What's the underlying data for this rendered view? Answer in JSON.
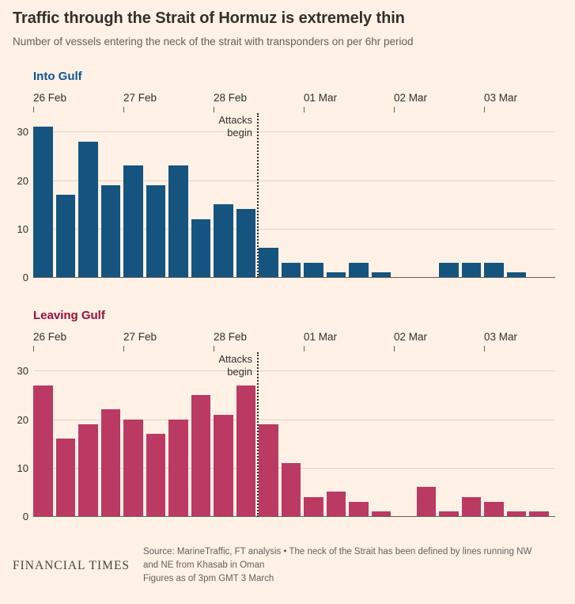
{
  "page": {
    "background_color": "#fff1e5",
    "title": "Traffic through the Strait of Hormuz is extremely thin",
    "subtitle": "Number of vessels entering the neck of the strait with transponders on per 6hr period"
  },
  "footer": {
    "logo": "FINANCIAL TIMES",
    "source_lines": [
      "Source: MarineTraffic, FT analysis • The neck of the Strait has been defined by lines running NW",
      "and NE from Khasab in Oman",
      "Figures as of 3pm GMT 3 March"
    ]
  },
  "chart_data": [
    {
      "type": "bar",
      "title": "Into Gulf",
      "title_color": "#0f5499",
      "bar_color": "#15547f",
      "categories": [
        "26 Feb",
        "27 Feb",
        "28 Feb",
        "01 Mar",
        "02 Mar",
        "03 Mar"
      ],
      "bars_per_category": 4,
      "x_note": "each bar is one 6hr period",
      "values": [
        31,
        17,
        28,
        19,
        23,
        19,
        23,
        12,
        15,
        14,
        6,
        3,
        3,
        1,
        3,
        1,
        0,
        0,
        3,
        3,
        3,
        1,
        0
      ],
      "yticks": [
        0,
        10,
        20,
        30
      ],
      "ylim": [
        0,
        34
      ],
      "grid": true,
      "annotation": {
        "lines": [
          "Attacks",
          "begin"
        ],
        "at_bar_boundary": 10
      }
    },
    {
      "type": "bar",
      "title": "Leaving Gulf",
      "title_color": "#990f3d",
      "bar_color": "#ba3a64",
      "categories": [
        "26 Feb",
        "27 Feb",
        "28 Feb",
        "01 Mar",
        "02 Mar",
        "03 Mar"
      ],
      "bars_per_category": 4,
      "x_note": "each bar is one 6hr period",
      "values": [
        27,
        16,
        19,
        22,
        20,
        17,
        20,
        25,
        21,
        27,
        19,
        11,
        4,
        5,
        3,
        1,
        0,
        6,
        1,
        4,
        3,
        1,
        1
      ],
      "yticks": [
        0,
        10,
        20,
        30
      ],
      "ylim": [
        0,
        34
      ],
      "grid": true,
      "annotation": {
        "lines": [
          "Attacks",
          "begin"
        ],
        "at_bar_boundary": 10
      }
    }
  ]
}
